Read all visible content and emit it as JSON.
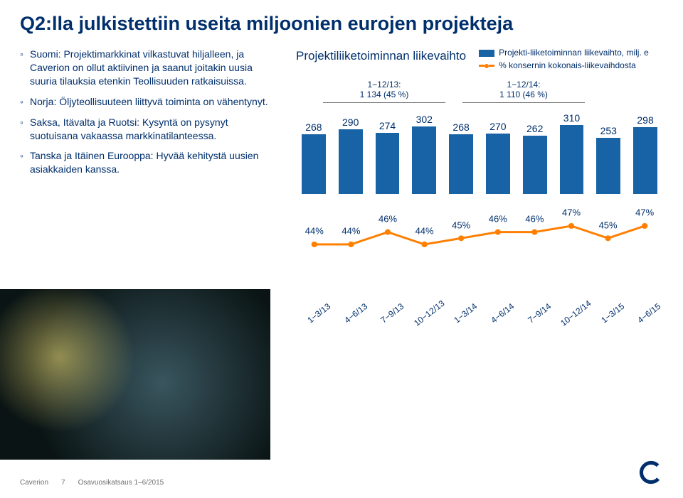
{
  "colors": {
    "brand_blue": "#002f6c",
    "bar_blue": "#1763a5",
    "accent_orange": "#ff7f00",
    "grey": "#6f6f6f",
    "bg": "#ffffff"
  },
  "title": "Q2:lla julkistettiin useita miljoonien eurojen projekteja",
  "bullets": [
    "Suomi: Projektimarkkinat vilkastuvat hiljalleen, ja Caverion on ollut aktiivinen ja saanut joitakin uusia suuria tilauksia etenkin Teollisuuden ratkaisuissa.",
    "Norja: Öljyteollisuuteen liittyvä toiminta on vähentynyt.",
    "Saksa, Itävalta ja Ruotsi: Kysyntä on pysynyt suotuisana vakaassa markkinatilanteessa.",
    "Tanska ja Itäinen Eurooppa: Hyvää kehitystä uusien asiakkaiden kanssa."
  ],
  "chart": {
    "title": "Projektiliiketoiminnan liikevaihto",
    "title_fontsize": 17,
    "legend": [
      {
        "type": "bar",
        "color": "#1763a5",
        "label": "Projekti-liiketoiminnan liikevaihto, milj. e"
      },
      {
        "type": "line",
        "color": "#ff7f00",
        "label": "% konsernin kokonais-liikevaihdosta"
      }
    ],
    "period_labels": [
      {
        "line1": "1−12/13:",
        "line2": "1 134 (45 %)"
      },
      {
        "line1": "1−12/14:",
        "line2": "1 110 (46 %)"
      }
    ],
    "categories": [
      "1−3/13",
      "4−6/13",
      "7−9/13",
      "10−12/13",
      "1−3/14",
      "4−6/14",
      "7−9/14",
      "10−12/14",
      "1−3/15",
      "4−6/15"
    ],
    "bar_values": [
      268,
      290,
      274,
      302,
      268,
      270,
      262,
      310,
      253,
      298
    ],
    "bar_color": "#1763a5",
    "bar_label_fontsize": 14,
    "bar_ylim": [
      0,
      320
    ],
    "bar_width": 0.68,
    "pct_values": [
      44,
      44,
      46,
      44,
      45,
      46,
      46,
      47,
      45,
      47
    ],
    "pct_ylim": [
      38,
      50
    ],
    "pct_color": "#ff7f00",
    "pct_line_width": 3,
    "pct_marker_radius": 4,
    "pct_label_fontsize": 13,
    "xaxis_rotation_deg": -38,
    "xaxis_fontsize": 12
  },
  "footer": {
    "brand": "Caverion",
    "page_no": "7",
    "doc": "Osavuosikatsaus 1–6/2015"
  }
}
